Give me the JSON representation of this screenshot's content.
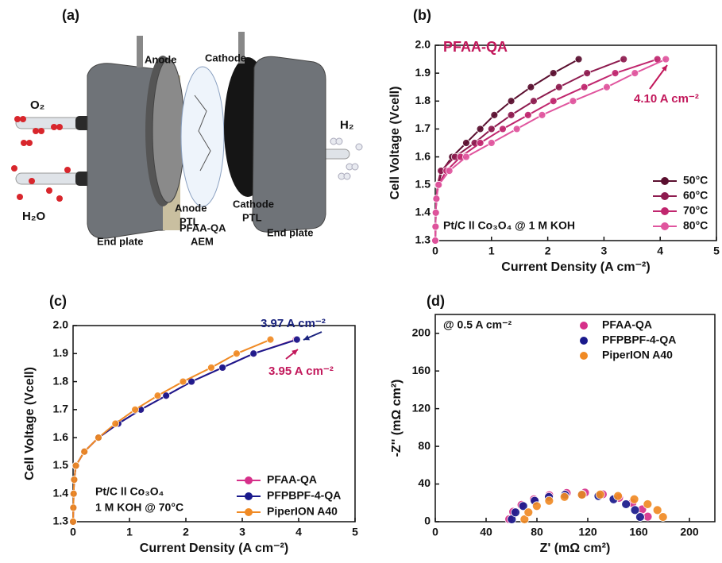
{
  "diagram": {
    "panel": "(a)",
    "o2": "O₂",
    "h2o": "H₂O",
    "h2": "H₂",
    "anode": "Anode",
    "cathode": "Cathode",
    "anode_ptl": [
      "Anode",
      "PTL"
    ],
    "aem": [
      "PFAA-QA",
      "AEM"
    ],
    "cathode_ptl": [
      "Cathode",
      "PTL"
    ],
    "end_plate_left": "End plate",
    "end_plate_right": "End plate"
  },
  "chart_data": [
    {
      "type": "line",
      "panel": "(b)",
      "xlabel": "Current Density (A cm⁻²)",
      "ylabel": "Cell Voltage (Vcell)",
      "xlim": [
        0,
        5
      ],
      "ylim": [
        1.3,
        2.0
      ],
      "xticks": [
        0,
        1,
        2,
        3,
        4,
        5
      ],
      "yticks": [
        1.3,
        1.4,
        1.5,
        1.6,
        1.7,
        1.8,
        1.9,
        {
          "value": 2,
          "label": "2.0"
        }
      ],
      "annotations": [
        "PFAA-QA",
        "4.10 A cm⁻²",
        "Pt/C ll Co₃O₄ @ 1 M KOH"
      ],
      "legend": "lower right",
      "series": [
        {
          "name": "50°C",
          "color": "#5a0f2f",
          "x": [
            0,
            0.005,
            0.01,
            0.02,
            0.05,
            0.12,
            0.3,
            0.55,
            0.8,
            1.05,
            1.35,
            1.7,
            2.1,
            2.55
          ],
          "values": [
            1.3,
            1.35,
            1.4,
            1.45,
            1.5,
            1.55,
            1.6,
            1.65,
            1.7,
            1.75,
            1.8,
            1.85,
            1.9,
            1.95
          ]
        },
        {
          "name": "60°C",
          "color": "#8e1b4f",
          "x": [
            0,
            0.005,
            0.01,
            0.02,
            0.04,
            0.1,
            0.35,
            0.7,
            1.0,
            1.35,
            1.75,
            2.2,
            2.7,
            3.35
          ],
          "values": [
            1.3,
            1.35,
            1.4,
            1.45,
            1.5,
            1.55,
            1.6,
            1.65,
            1.7,
            1.75,
            1.8,
            1.85,
            1.9,
            1.95
          ]
        },
        {
          "name": "70°C",
          "color": "#c0266e",
          "x": [
            0,
            0.005,
            0.01,
            0.02,
            0.05,
            0.2,
            0.45,
            0.8,
            1.2,
            1.65,
            2.1,
            2.65,
            3.2,
            3.95
          ],
          "values": [
            1.3,
            1.35,
            1.4,
            1.45,
            1.5,
            1.55,
            1.6,
            1.65,
            1.7,
            1.75,
            1.8,
            1.85,
            1.9,
            1.95
          ]
        },
        {
          "name": "80°C",
          "color": "#e0559e",
          "x": [
            0,
            0.005,
            0.01,
            0.02,
            0.06,
            0.25,
            0.55,
            1.0,
            1.45,
            1.9,
            2.45,
            3.05,
            3.55,
            4.1
          ],
          "values": [
            1.3,
            1.35,
            1.4,
            1.45,
            1.5,
            1.55,
            1.6,
            1.65,
            1.7,
            1.75,
            1.8,
            1.85,
            1.9,
            1.95
          ]
        }
      ]
    },
    {
      "type": "line",
      "panel": "(c)",
      "xlabel": "Current Density (A cm⁻²)",
      "ylabel": "Cell Voltage (Vcell)",
      "xlim": [
        0,
        5
      ],
      "ylim": [
        1.3,
        2.0
      ],
      "xticks": [
        0,
        1,
        2,
        3,
        4,
        5
      ],
      "yticks": [
        1.3,
        1.4,
        1.5,
        1.6,
        1.7,
        1.8,
        1.9,
        {
          "value": 2,
          "label": "2.0"
        }
      ],
      "annotations": [
        "3.97 A cm⁻²",
        "3.95 A cm⁻²",
        "Pt/C ll Co₃O₄",
        "1 M KOH @ 70°C"
      ],
      "legend": "lower right",
      "series": [
        {
          "name": "PFAA-QA",
          "color": "#d6308a",
          "x": [
            0,
            0.005,
            0.01,
            0.02,
            0.05,
            0.2,
            0.45,
            0.8,
            1.2,
            1.65,
            2.1,
            2.65,
            3.2,
            3.95
          ],
          "values": [
            1.3,
            1.35,
            1.4,
            1.45,
            1.5,
            1.55,
            1.6,
            1.65,
            1.7,
            1.75,
            1.8,
            1.85,
            1.9,
            1.95
          ]
        },
        {
          "name": "PFPBPF-4-QA",
          "color": "#1a1a8c",
          "x": [
            0,
            0.005,
            0.01,
            0.02,
            0.05,
            0.2,
            0.45,
            0.8,
            1.2,
            1.65,
            2.1,
            2.65,
            3.2,
            3.97
          ],
          "values": [
            1.3,
            1.35,
            1.4,
            1.45,
            1.5,
            1.55,
            1.6,
            1.65,
            1.7,
            1.75,
            1.8,
            1.85,
            1.9,
            1.95
          ]
        },
        {
          "name": "PiperION A40",
          "color": "#f08a24",
          "x": [
            0,
            0.005,
            0.01,
            0.02,
            0.05,
            0.2,
            0.45,
            0.75,
            1.1,
            1.5,
            1.95,
            2.45,
            2.9,
            3.5
          ],
          "values": [
            1.3,
            1.35,
            1.4,
            1.45,
            1.5,
            1.55,
            1.6,
            1.65,
            1.7,
            1.75,
            1.8,
            1.85,
            1.9,
            1.95
          ]
        }
      ]
    },
    {
      "type": "scatter",
      "panel": "(d)",
      "xlabel": "Z' (mΩ cm²)",
      "ylabel": "-Z'' (mΩ cm²)",
      "xlim": [
        0,
        220
      ],
      "ylim": [
        0,
        220
      ],
      "xticks": [
        0,
        40,
        80,
        120,
        160,
        200
      ],
      "yticks": [
        0,
        40,
        80,
        120,
        160,
        200
      ],
      "annotations": [
        "@ 0.5 A cm⁻²"
      ],
      "legend": "upper right",
      "series": [
        {
          "name": "PFAA-QA",
          "color": "#d6308a",
          "x": [
            58.2,
            61.3,
            67.9,
            77.6,
            89.7,
            103.4,
            117.8,
            131.8,
            144.6,
            155.1,
            162.8,
            167.2
          ],
          "values": [
            2.7,
            10.6,
            17.8,
            23.7,
            28.1,
            30.5,
            30.9,
            29.1,
            25.4,
            19.9,
            13.1,
            5.4
          ]
        },
        {
          "name": "PFPBPF-4-QA",
          "color": "#1a1a8c",
          "x": [
            60.2,
            63.1,
            69.2,
            78.2,
            89.4,
            102.1,
            115.4,
            128.4,
            140.3,
            150.1,
            157.2,
            161.2
          ],
          "values": [
            2.5,
            9.9,
            16.6,
            22.2,
            26.3,
            28.6,
            28.9,
            27.3,
            23.8,
            18.6,
            12.3,
            5.0
          ]
        },
        {
          "name": "PiperION A40",
          "color": "#f08a24",
          "x": [
            70.2,
            73.3,
            79.9,
            89.6,
            101.7,
            115.4,
            129.8,
            143.8,
            156.6,
            167.1,
            174.8,
            179.2
          ],
          "values": [
            2.5,
            9.9,
            16.6,
            22.2,
            26.3,
            28.6,
            28.9,
            27.3,
            23.8,
            18.6,
            12.3,
            5.0
          ]
        }
      ]
    }
  ]
}
